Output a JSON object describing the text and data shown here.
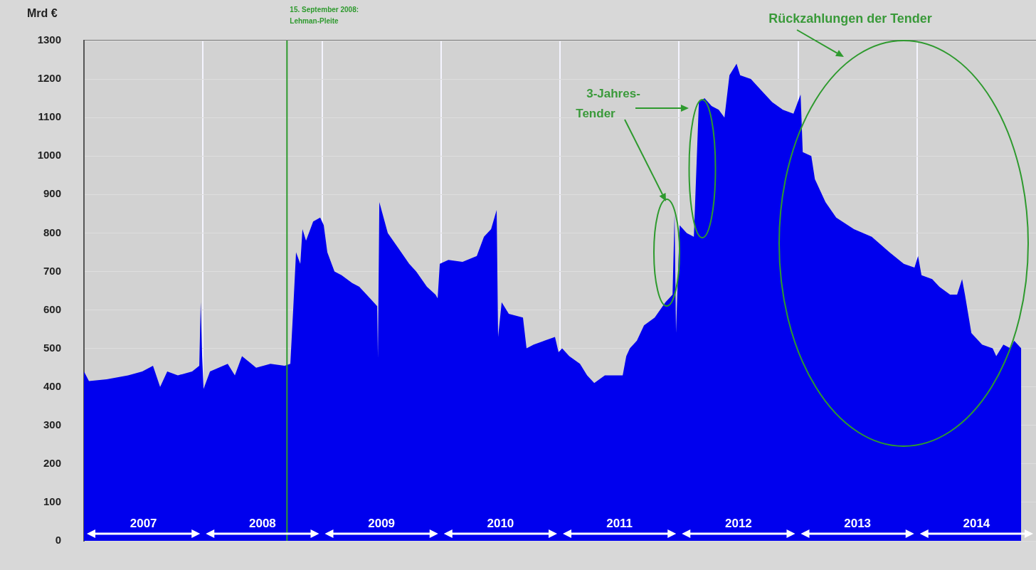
{
  "chart_data": {
    "type": "area",
    "ylabel": "Mrd €",
    "color": "#0000ee",
    "marker": "none",
    "grid": true,
    "legend": false,
    "xlim": [
      2007,
      2015
    ],
    "xticks": [
      {
        "value": 2007.5,
        "label": "2007"
      },
      {
        "value": 2008,
        "label": null
      },
      {
        "value": 2008.5,
        "label": "2008"
      },
      {
        "value": 2009,
        "label": null
      },
      {
        "value": 2009.5,
        "label": "2009"
      },
      {
        "value": 2010,
        "label": null
      },
      {
        "value": 2010.5,
        "label": "2010"
      },
      {
        "value": 2011,
        "label": null
      },
      {
        "value": 2011.5,
        "label": "2011"
      },
      {
        "value": 2012,
        "label": null
      },
      {
        "value": 2012.5,
        "label": "2012"
      },
      {
        "value": 2013,
        "label": null
      },
      {
        "value": 2013.5,
        "label": "2013"
      },
      {
        "value": 2014,
        "label": null
      },
      {
        "value": 2014.5,
        "label": "2014"
      }
    ],
    "ylim": [
      0,
      1300
    ],
    "yticks": [
      0,
      100,
      200,
      300,
      400,
      500,
      600,
      700,
      800,
      900,
      1000,
      1100,
      1200,
      1300
    ],
    "x": [
      2007.0,
      2007.042,
      2007.191,
      2007.371,
      2007.49,
      2007.58,
      2007.64,
      2007.7,
      2007.789,
      2007.909,
      2007.969,
      2007.981,
      2007.993,
      2008.005,
      2008.059,
      2008.208,
      2008.268,
      2008.328,
      2008.447,
      2008.567,
      2008.686,
      2008.734,
      2008.758,
      2008.782,
      2008.818,
      2008.836,
      2008.866,
      2008.926,
      2008.985,
      2009.015,
      2009.045,
      2009.105,
      2009.165,
      2009.254,
      2009.314,
      2009.404,
      2009.464,
      2009.47,
      2009.482,
      2009.553,
      2009.643,
      2009.733,
      2009.792,
      2009.882,
      2009.954,
      2009.972,
      2009.99,
      2010.062,
      2010.181,
      2010.301,
      2010.361,
      2010.421,
      2010.468,
      2010.48,
      2010.51,
      2010.57,
      2010.689,
      2010.719,
      2010.779,
      2010.869,
      2010.958,
      2010.988,
      2011.018,
      2011.078,
      2011.168,
      2011.228,
      2011.288,
      2011.377,
      2011.467,
      2011.527,
      2011.557,
      2011.587,
      2011.646,
      2011.706,
      2011.796,
      2011.886,
      2011.946,
      2011.963,
      2011.975,
      2012.005,
      2012.065,
      2012.125,
      2012.167,
      2012.215,
      2012.274,
      2012.334,
      2012.382,
      2012.424,
      2012.484,
      2012.514,
      2012.604,
      2012.693,
      2012.783,
      2012.873,
      2012.962,
      2013.022,
      2013.04,
      2013.112,
      2013.142,
      2013.231,
      2013.321,
      2013.47,
      2013.62,
      2013.769,
      2013.889,
      2013.979,
      2014.009,
      2014.038,
      2014.128,
      2014.188,
      2014.278,
      2014.337,
      2014.379,
      2014.403,
      2014.457,
      2014.547,
      2014.636,
      2014.666,
      2014.726,
      2014.786,
      2014.816,
      2014.876
    ],
    "values": [
      440,
      415,
      420,
      430,
      440,
      455,
      400,
      440,
      430,
      440,
      455,
      620,
      480,
      395,
      440,
      460,
      430,
      480,
      450,
      460,
      455,
      460,
      600,
      750,
      720,
      810,
      780,
      830,
      840,
      820,
      750,
      700,
      690,
      670,
      660,
      630,
      610,
      475,
      880,
      800,
      760,
      720,
      700,
      660,
      640,
      630,
      720,
      730,
      725,
      740,
      790,
      810,
      860,
      530,
      620,
      590,
      580,
      500,
      510,
      520,
      530,
      490,
      500,
      480,
      460,
      430,
      410,
      430,
      430,
      430,
      480,
      500,
      520,
      560,
      580,
      620,
      640,
      850,
      540,
      820,
      800,
      790,
      1140,
      1150,
      1130,
      1120,
      1100,
      1210,
      1240,
      1210,
      1200,
      1170,
      1140,
      1120,
      1110,
      1160,
      1010,
      1000,
      940,
      880,
      840,
      810,
      790,
      750,
      720,
      710,
      740,
      690,
      680,
      660,
      640,
      640,
      680,
      640,
      540,
      510,
      500,
      480,
      510,
      500,
      520,
      500
    ],
    "ref_lines": [
      {
        "axis": "x",
        "value": 2008.706,
        "label": "15. September 2008:\nLehman-Pleite",
        "color": "#2e9a2e"
      }
    ],
    "annotations": [
      "3-Jahres-\nTender",
      "Rückzahlungen der Tender"
    ]
  }
}
